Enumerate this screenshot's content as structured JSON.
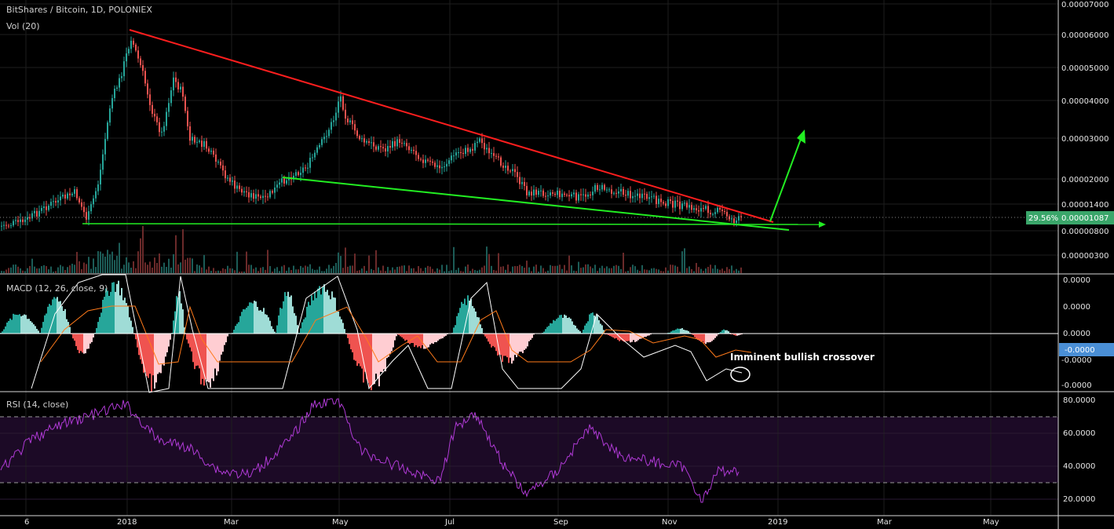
{
  "header": {
    "symbol": "BitShares / Bitcoin, 1D, POLONIEX",
    "volume_label": "Vol (20)"
  },
  "colors": {
    "up": "#26a69a",
    "down": "#ef5350",
    "resistance": "#ff1e1e",
    "support": "#22ee22",
    "rsi": "#b03ad6",
    "macd": "#ffffff",
    "signal": "#ff7a1a",
    "price_badge": "#3aa66a",
    "macd_badge": "#4a8fd6"
  },
  "icons": [
    "arrow-up-right-icon",
    "arrow-right-icon"
  ],
  "price_axis": {
    "scale": "log",
    "ticks": [
      "0.00007000",
      "0.00006000",
      "0.00005000",
      "0.00004000",
      "0.00003000",
      "0.00002000",
      "0.00001400",
      "0.00000800",
      "0.00000300"
    ],
    "last_price": "0.00001087",
    "change_pct": "29.56%"
  },
  "macd_panel": {
    "label": "MACD (12, 26, close, 9)",
    "ticks": [
      "0.0000",
      "0.0000",
      "0.0000",
      "-0.0000",
      "-0.0000"
    ],
    "current": "-0.0000",
    "annotation": "Imminent bullish crossover"
  },
  "rsi_panel": {
    "label": "RSI (14, close)",
    "ticks": [
      "80.0000",
      "60.0000",
      "40.0000",
      "20.0000"
    ],
    "upper_band": 70,
    "lower_band": 30
  },
  "time_axis": {
    "labels": [
      "6",
      "2018",
      "Mar",
      "May",
      "Jul",
      "Sep",
      "Nov",
      "2019",
      "Mar",
      "May"
    ]
  },
  "chart_data": {
    "type": "candlestick",
    "title": "BitShares / Bitcoin, 1D, POLONIEX",
    "y_scale": "log",
    "x": [
      "2017-11-20",
      "2017-12-15",
      "2018-01-05",
      "2018-02-05",
      "2018-03-25",
      "2018-05-01",
      "2018-07-10",
      "2018-08-20",
      "2018-10-01",
      "2018-12-01",
      "2018-12-10"
    ],
    "close": [
      8.5e-06,
      1.4e-05,
      6e-05,
      4.5e-05,
      1.5e-05,
      4.3e-05,
      3.1e-05,
      1.8e-05,
      1.8e-05,
      1.15e-05,
      1.087e-05
    ],
    "trendlines": [
      {
        "name": "resistance",
        "from": [
          "2018-01-05",
          6.2e-05
        ],
        "to": [
          "2018-12-28",
          8.7e-06
        ]
      },
      {
        "name": "support",
        "from": [
          "2018-03-20",
          2.05e-05
        ],
        "to": [
          "2019-01-02",
          8.2e-06
        ]
      },
      {
        "name": "horizontal support",
        "from": [
          "2017-12-10",
          8.6e-06
        ],
        "to": [
          "2019-01-22",
          8.6e-06
        ]
      }
    ],
    "projection": {
      "from": [
        "2018-12-28",
        8.7e-06
      ],
      "to": [
        "2019-01-10",
        3e-05
      ]
    },
    "rsi": {
      "x": [
        "2017-11-20",
        "2018-01-05",
        "2018-03-01",
        "2018-05-01",
        "2018-06-15",
        "2018-07-10",
        "2018-08-15",
        "2018-09-10",
        "2018-10-15",
        "2018-11-25",
        "2018-12-10"
      ],
      "values": [
        38,
        78,
        32,
        80,
        30,
        68,
        22,
        62,
        38,
        18,
        37
      ]
    },
    "macd": {
      "histogram_current": -0.0,
      "note": "Imminent bullish crossover"
    }
  }
}
